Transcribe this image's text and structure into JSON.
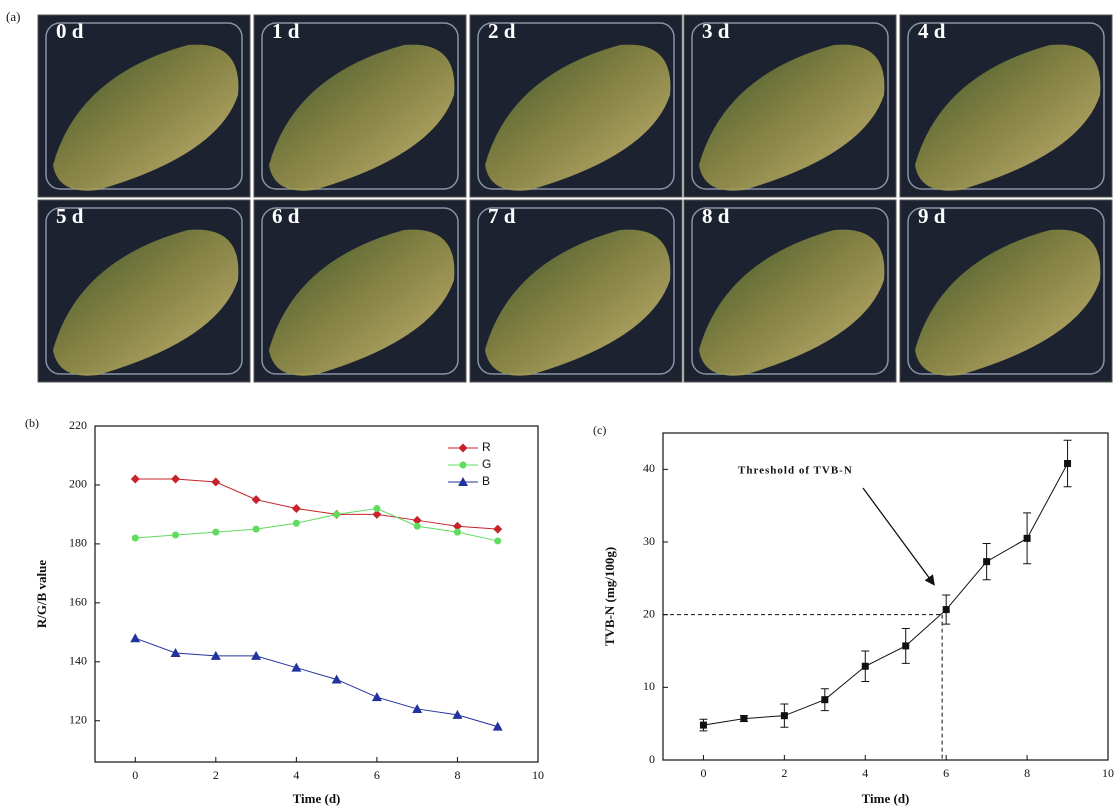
{
  "photos": {
    "panel_label": "(a)",
    "tiles": [
      "0 d",
      "1 d",
      "2 d",
      "3 d",
      "4 d",
      "5 d",
      "6 d",
      "7 d",
      "8 d",
      "9 d"
    ]
  },
  "chart_data": [
    {
      "type": "line",
      "panel_label": "(b)",
      "x_label": "Time (d)",
      "y_label": "R/G/B value",
      "x": [
        0,
        1,
        2,
        3,
        4,
        5,
        6,
        7,
        8,
        9
      ],
      "xlim": [
        -1,
        10
      ],
      "xticks": [
        0,
        2,
        4,
        6,
        8,
        10
      ],
      "ylim": [
        106,
        220
      ],
      "yticks": [
        120,
        140,
        160,
        180,
        200,
        220
      ],
      "legend": "upper right",
      "series": [
        {
          "name": "R",
          "color": "#c8232c",
          "marker": "diamond",
          "values": [
            202,
            202,
            201,
            195,
            192,
            190,
            190,
            188,
            186,
            185
          ]
        },
        {
          "name": "G",
          "color": "#5fdc5f",
          "marker": "circle",
          "values": [
            182,
            183,
            184,
            185,
            187,
            190,
            192,
            186,
            184,
            181
          ]
        },
        {
          "name": "B",
          "color": "#22339e",
          "marker": "triangle",
          "values": [
            148,
            143,
            142,
            142,
            138,
            134,
            128,
            124,
            122,
            118
          ]
        }
      ]
    },
    {
      "type": "line",
      "panel_label": "(c)",
      "x_label": "Time (d)",
      "y_label": "TVB-N (mg/100g)",
      "x": [
        0,
        1,
        2,
        3,
        4,
        5,
        6,
        7,
        8,
        9
      ],
      "xlim": [
        -1,
        10
      ],
      "xticks": [
        0,
        2,
        4,
        6,
        8,
        10
      ],
      "ylim": [
        0,
        45
      ],
      "yticks": [
        0,
        10,
        20,
        30,
        40
      ],
      "series": [
        {
          "color": "#111111",
          "marker": "square",
          "values": [
            4.8,
            5.7,
            6.1,
            8.3,
            12.9,
            15.7,
            20.7,
            27.3,
            30.5,
            40.8
          ],
          "errors": [
            0.8,
            0.4,
            1.6,
            1.5,
            2.1,
            2.4,
            2.0,
            2.5,
            3.5,
            3.2
          ]
        }
      ],
      "threshold": {
        "label": "Threshold of TVB-N",
        "y": 20,
        "x": 5.9
      }
    }
  ]
}
